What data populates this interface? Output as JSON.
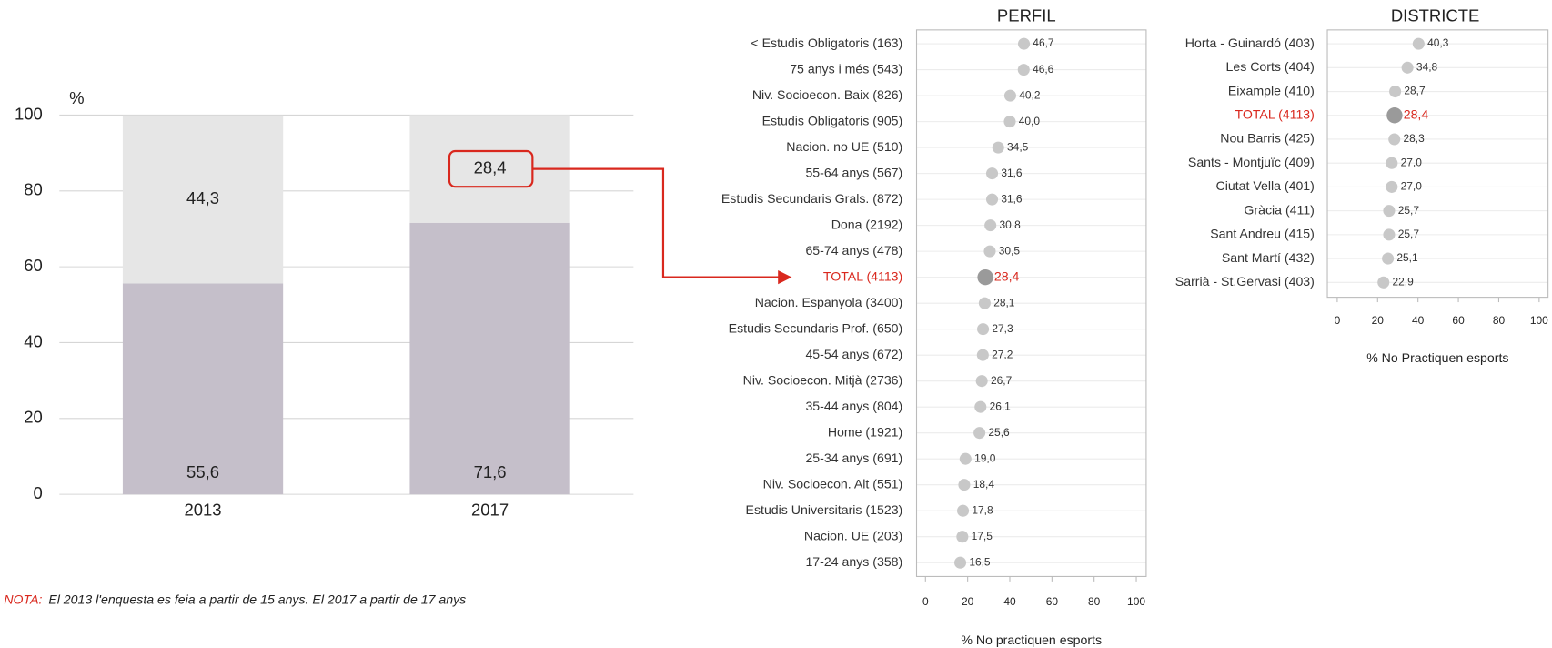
{
  "chart_data": [
    {
      "type": "stacked_bar",
      "y_label": "%",
      "categories": [
        "2013",
        "2017"
      ],
      "series": [
        {
          "color": "#c5bfca",
          "values": [
            55.6,
            71.6
          ],
          "value_labels": [
            "55,6",
            "71,6"
          ]
        },
        {
          "color": "#e6e6e6",
          "values": [
            44.3,
            28.4
          ],
          "value_labels": [
            "44,3",
            "28,4"
          ]
        }
      ],
      "ylim": [
        0,
        100
      ],
      "yticks": [
        0,
        20,
        40,
        60,
        80,
        100
      ],
      "grid": true
    },
    {
      "type": "dot",
      "title": "PERFIL",
      "x_label": "% No practiquen esports",
      "categories": [
        "< Estudis Obligatoris (163)",
        "75 anys i més (543)",
        "Niv. Socioecon. Baix (826)",
        "Estudis Obligatoris (905)",
        "Nacion. no UE (510)",
        "55-64 anys (567)",
        "Estudis Secundaris Grals. (872)",
        "Dona (2192)",
        "65-74 anys (478)",
        "TOTAL (4113)",
        "Nacion. Espanyola (3400)",
        "Estudis Secundaris Prof. (650)",
        "45-54 anys (672)",
        "Niv. Socioecon. Mitjà (2736)",
        "35-44 anys (804)",
        "Home (1921)",
        "25-34 anys (691)",
        "Niv. Socioecon. Alt (551)",
        "Estudis Universitaris (1523)",
        "Nacion. UE (203)",
        "17-24 anys (358)"
      ],
      "values": [
        46.7,
        46.6,
        40.2,
        40.0,
        34.5,
        31.6,
        31.6,
        30.8,
        30.5,
        28.4,
        28.1,
        27.3,
        27.2,
        26.7,
        26.1,
        25.6,
        19.0,
        18.4,
        17.8,
        17.5,
        16.5
      ],
      "value_labels": [
        "46,7",
        "46,6",
        "40,2",
        "40,0",
        "34,5",
        "31,6",
        "31,6",
        "30,8",
        "30,5",
        "28,4",
        "28,1",
        "27,3",
        "27,2",
        "26,7",
        "26,1",
        "25,6",
        "19,0",
        "18,4",
        "17,8",
        "17,5",
        "16,5"
      ],
      "colors": [
        "#c8c8c8",
        "#c8c8c8",
        "#c8c8c8",
        "#c8c8c8",
        "#c8c8c8",
        "#c8c8c8",
        "#c8c8c8",
        "#c8c8c8",
        "#c8c8c8",
        "#9a9a9a",
        "#c8c8c8",
        "#c8c8c8",
        "#c8c8c8",
        "#c8c8c8",
        "#c8c8c8",
        "#c8c8c8",
        "#c8c8c8",
        "#c8c8c8",
        "#c8c8c8",
        "#c8c8c8",
        "#c8c8c8"
      ],
      "label_colors": [
        "#333333",
        "#333333",
        "#333333",
        "#333333",
        "#333333",
        "#333333",
        "#333333",
        "#333333",
        "#333333",
        "#d9281e",
        "#333333",
        "#333333",
        "#333333",
        "#333333",
        "#333333",
        "#333333",
        "#333333",
        "#333333",
        "#333333",
        "#333333",
        "#333333"
      ],
      "xlim": [
        0,
        100
      ],
      "xticks": [
        0,
        20,
        40,
        60,
        80,
        100
      ]
    },
    {
      "type": "dot",
      "title": "DISTRICTE",
      "x_label": "% No Practiquen esports",
      "categories": [
        "Horta - Guinardó (403)",
        "Les Corts (404)",
        "Eixample (410)",
        "TOTAL (4113)",
        "Nou Barris (425)",
        "Sants - Montjuïc (409)",
        "Ciutat Vella (401)",
        "Gràcia (411)",
        "Sant Andreu (415)",
        "Sant Martí (432)",
        "Sarrià - St.Gervasi (403)"
      ],
      "values": [
        40.3,
        34.8,
        28.7,
        28.4,
        28.3,
        27.0,
        27.0,
        25.7,
        25.7,
        25.1,
        22.9
      ],
      "value_labels": [
        "40,3",
        "34,8",
        "28,7",
        "28,4",
        "28,3",
        "27,0",
        "27,0",
        "25,7",
        "25,7",
        "25,1",
        "22,9"
      ],
      "colors": [
        "#c8c8c8",
        "#c8c8c8",
        "#c8c8c8",
        "#9a9a9a",
        "#c8c8c8",
        "#c8c8c8",
        "#c8c8c8",
        "#c8c8c8",
        "#c8c8c8",
        "#c8c8c8",
        "#c8c8c8"
      ],
      "label_colors": [
        "#333333",
        "#333333",
        "#333333",
        "#d9281e",
        "#333333",
        "#333333",
        "#333333",
        "#333333",
        "#333333",
        "#333333",
        "#333333"
      ],
      "xlim": [
        0,
        100
      ],
      "xticks": [
        0,
        20,
        40,
        60,
        80,
        100
      ]
    }
  ],
  "note": {
    "label": "NOTA:",
    "text": "El 2013 l'enquesta es feia a partir de 15 anys. El 2017 a partir de 17 anys"
  }
}
